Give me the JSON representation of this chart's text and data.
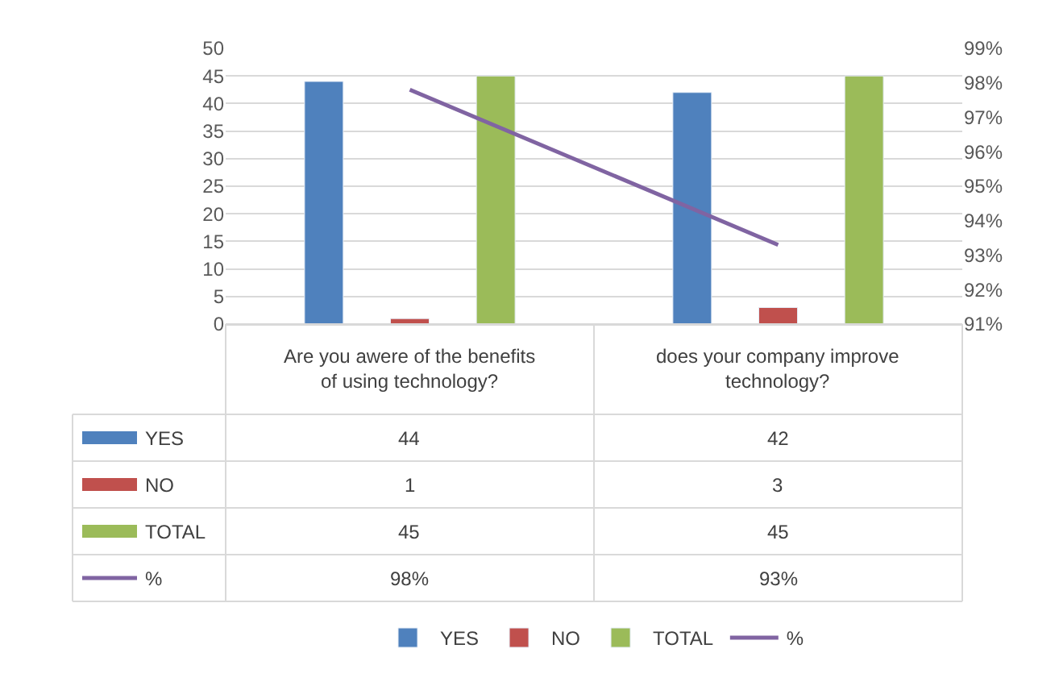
{
  "chart_data": {
    "type": "bar",
    "categories": [
      "Are you awere of the benefits of using technology?",
      "does your company improve technology?"
    ],
    "series": [
      {
        "name": "YES",
        "color": "#4f81bd",
        "values": [
          44,
          42
        ],
        "value_labels": [
          "44",
          "42"
        ]
      },
      {
        "name": "NO",
        "color": "#c0504d",
        "values": [
          1,
          3
        ],
        "value_labels": [
          "1",
          "3"
        ]
      },
      {
        "name": "TOTAL",
        "color": "#9bbb59",
        "values": [
          45,
          45
        ],
        "value_labels": [
          "45",
          "45"
        ]
      },
      {
        "name": "%",
        "color": "#8064a2",
        "type": "line",
        "axis": "y2",
        "values": [
          97.8,
          93.3
        ],
        "value_labels": [
          "98%",
          "93%"
        ]
      }
    ],
    "ylim": [
      0,
      50
    ],
    "yticks": [
      0,
      5,
      10,
      15,
      20,
      25,
      30,
      35,
      40,
      45,
      50
    ],
    "y2lim": [
      91,
      99
    ],
    "y2ticks": [
      {
        "value": 91,
        "label": "91%"
      },
      {
        "value": 92,
        "label": "92%"
      },
      {
        "value": 93,
        "label": "93%"
      },
      {
        "value": 94,
        "label": "94%"
      },
      {
        "value": 95,
        "label": "95%"
      },
      {
        "value": 96,
        "label": "96%"
      },
      {
        "value": 97,
        "label": "97%"
      },
      {
        "value": 98,
        "label": "98%"
      },
      {
        "value": 99,
        "label": "99%"
      }
    ],
    "grid": "y",
    "legend": "bottom",
    "marker": "none",
    "line_style": "solid"
  }
}
